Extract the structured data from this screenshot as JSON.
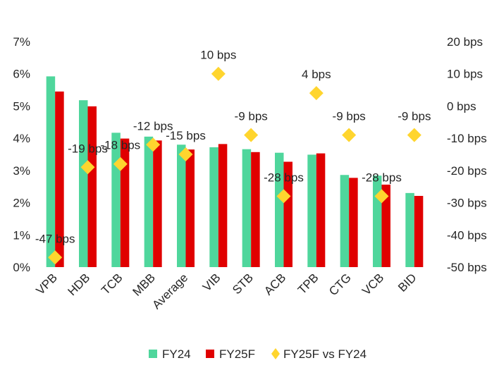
{
  "chart_data": {
    "type": "bar",
    "categories": [
      "VPB",
      "HDB",
      "TCB",
      "MBB",
      "Average",
      "VIB",
      "STB",
      "ACB",
      "TPB",
      "CTG",
      "VCB",
      "BID"
    ],
    "series": [
      {
        "name": "FY24",
        "kind": "bar",
        "axis": "left",
        "color": "#4fd69c",
        "values": [
          5.92,
          5.18,
          4.17,
          4.05,
          3.8,
          3.72,
          3.66,
          3.55,
          3.49,
          2.86,
          2.84,
          2.3
        ]
      },
      {
        "name": "FY25F",
        "kind": "bar",
        "axis": "left",
        "color": "#e00000",
        "values": [
          5.45,
          4.99,
          3.99,
          3.93,
          3.65,
          3.82,
          3.57,
          3.27,
          3.53,
          2.77,
          2.56,
          2.21
        ]
      },
      {
        "name": "FY25F vs FY24",
        "kind": "marker",
        "marker": "diamond",
        "axis": "right",
        "color": "#ffd52e",
        "values": [
          -47,
          -19,
          -18,
          -12,
          -15,
          10,
          -9,
          -28,
          4,
          -9,
          -28,
          -9
        ],
        "labels": [
          "-47 bps",
          "-19 bps",
          "-18 bps",
          "-12 bps",
          "-15 bps",
          "10 bps",
          "-9 bps",
          "-28 bps",
          "4 bps",
          "-9 bps",
          "-28 bps",
          "-9 bps"
        ]
      }
    ],
    "y_left": {
      "ticks": [
        "0%",
        "1%",
        "2%",
        "3%",
        "4%",
        "5%",
        "6%",
        "7%"
      ],
      "min": 0,
      "max": 7
    },
    "y_right": {
      "ticks": [
        "-50 bps",
        "-40 bps",
        "-30 bps",
        "-20 bps",
        "-10 bps",
        "0 bps",
        "10 bps",
        "20 bps"
      ],
      "min": -50,
      "max": 20
    },
    "grid": false,
    "legend_position": "bottom"
  }
}
